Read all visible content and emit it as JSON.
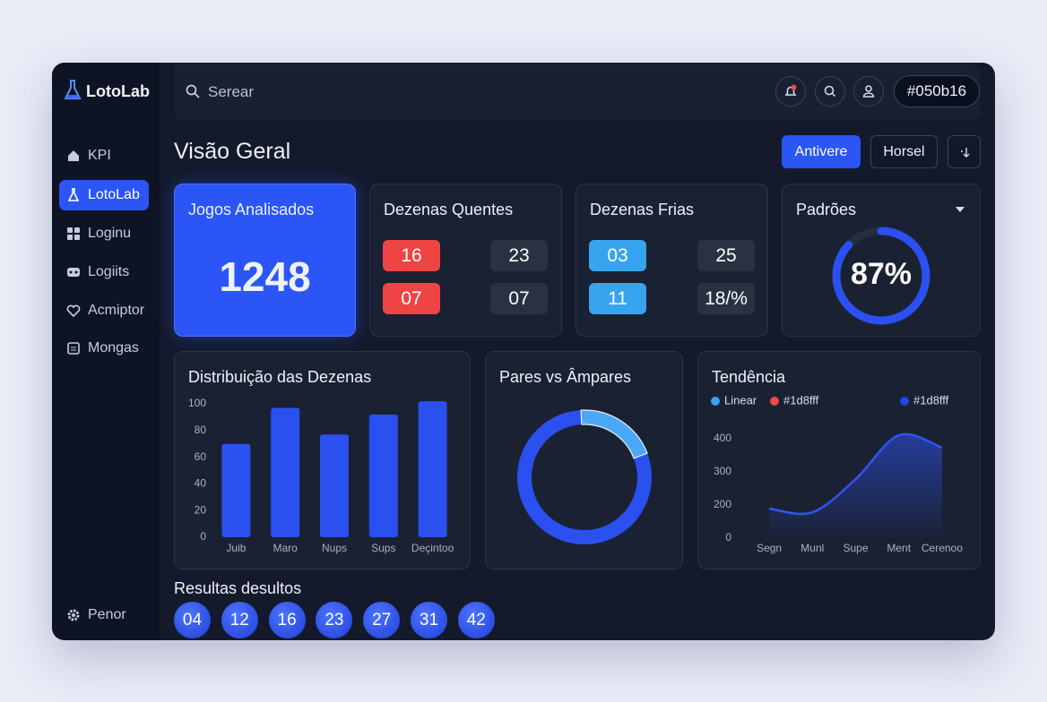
{
  "brand": "LotoLab",
  "nav": [
    "KPI",
    "LotoLab",
    "Loginu",
    "Logiits",
    "Acmiptor",
    "Mongas"
  ],
  "settings_label": "Penor",
  "search_placeholder": "Serear",
  "badge": "#050b16",
  "title": "Visão Geral",
  "buttons": [
    "Antivere",
    "Horsel"
  ],
  "cards": {
    "games": {
      "title": "Jogos Analisados",
      "value": 1248
    },
    "hot": {
      "title": "Dezenas Quentes",
      "numbers": [
        "16",
        "23",
        "07",
        "07"
      ]
    },
    "cold": {
      "title": "Dezenas Frias",
      "numbers": [
        "03",
        "25",
        "11",
        "18/%"
      ]
    },
    "patterns": {
      "title": "Padrões",
      "value": 87,
      "value_label": "87%"
    }
  },
  "chart_data": [
    {
      "type": "bar",
      "title": "Distribuição das Dezenas",
      "categories": [
        "Juib",
        "Maro",
        "Nups",
        "Sups",
        "Deçintoo"
      ],
      "values": [
        70,
        97,
        77,
        92,
        102
      ],
      "color": "#2b50f0",
      "ylim": [
        0,
        105
      ],
      "yticks": [
        0,
        20,
        40,
        60,
        80,
        100
      ]
    },
    {
      "type": "pie",
      "title": "Pares vs Âmpares",
      "values": [
        20,
        80
      ],
      "colors": [
        "#4aa8f5",
        "#2b50f0"
      ]
    },
    {
      "type": "line",
      "title": "Tendência",
      "legend": [
        {
          "label": "Linear",
          "color": "#36a3f7"
        },
        {
          "label": "#1d8fff",
          "color": "#f04848"
        },
        {
          "label": "#1d8fff",
          "color": "#2346e0"
        }
      ],
      "categories": [
        "Segn",
        "Munl",
        "Supe",
        "Ment",
        "Cerenoo"
      ],
      "series": [
        {
          "color": "#2f55f0",
          "values": [
            189,
            178,
            278,
            411,
            373
          ]
        }
      ],
      "ylim": [
        100,
        420
      ],
      "yticks": [
        {
          "value": 100,
          "label": "0"
        },
        200,
        300,
        400
      ]
    }
  ],
  "results": {
    "title": "Resultas desultos",
    "numbers": [
      "04",
      "12",
      "16",
      "23",
      "27",
      "31",
      "42"
    ]
  }
}
